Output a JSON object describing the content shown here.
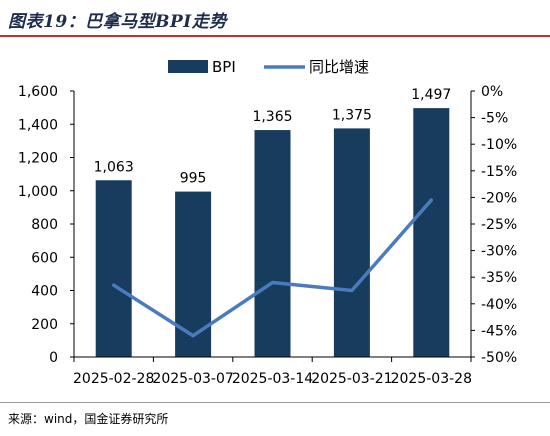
{
  "title": "图表19：巴拿马型BPI走势",
  "source": "来源：wind，国金证券研究所",
  "colors": {
    "bar": "#173c5e",
    "line": "#4a7cbd",
    "title_rule": "#c62d2d"
  },
  "chart_data": {
    "type": "bar",
    "categories": [
      "2025-02-28",
      "2025-03-07",
      "2025-03-14",
      "2025-03-21",
      "2025-03-28"
    ],
    "series": [
      {
        "name": "BPI",
        "type": "bar",
        "axis": "left",
        "values": [
          1063,
          995,
          1365,
          1375,
          1497
        ]
      },
      {
        "name": "同比增速",
        "type": "line",
        "axis": "right",
        "values": [
          -36.5,
          -46,
          -36,
          -37.5,
          -20.5
        ]
      }
    ],
    "data_labels": [
      "1,063",
      "995",
      "1,365",
      "1,375",
      "1,497"
    ],
    "y_left": {
      "lim": [
        0,
        1600
      ],
      "ticks": [
        "0",
        "200",
        "400",
        "600",
        "800",
        "1,000",
        "1,200",
        "1,400",
        "1,600"
      ]
    },
    "y_right": {
      "lim": [
        -50,
        0
      ],
      "ticks": [
        "-50%",
        "-45%",
        "-40%",
        "-35%",
        "-30%",
        "-25%",
        "-20%",
        "-15%",
        "-10%",
        "-5%",
        "0%"
      ]
    },
    "legend": {
      "position": "top",
      "items": [
        "BPI",
        "同比增速"
      ]
    },
    "grid": false
  }
}
